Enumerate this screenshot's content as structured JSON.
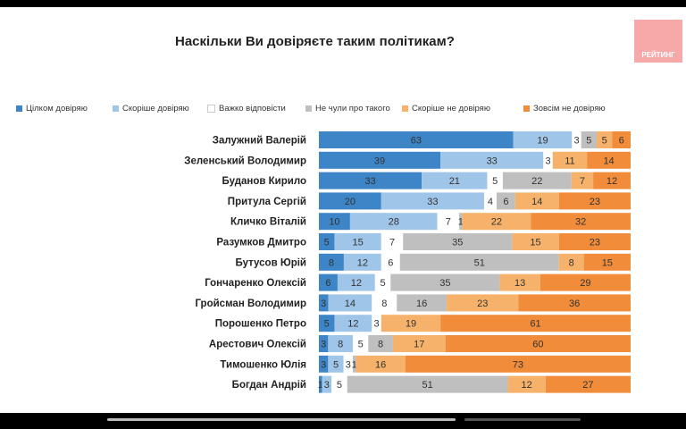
{
  "header": {
    "title": "Наскільки Ви довіряєте таким політикам?",
    "logo_text": "РЕЙТИНГ"
  },
  "colors": {
    "logo": "#f7a9a9"
  },
  "chart_data": {
    "type": "bar",
    "orientation": "horizontal",
    "stacked": true,
    "normalized": true,
    "title": "Наскільки Ви довіряєте таким політикам?",
    "legend_position": "top",
    "grid": false,
    "categories": [
      "Залужний Валерій",
      "Зеленський Володимир",
      "Буданов Кирило",
      "Притула Сергій",
      "Кличко Віталій",
      "Разумков Дмитро",
      "Бутусов Юрій",
      "Гончаренко Олексій",
      "Гройсман Володимир",
      "Порошенко Петро",
      "Арестович Олексій",
      "Тимошенко Юлія",
      "Богдан Андрій"
    ],
    "series": [
      {
        "name": "Цілком довіряю",
        "color": "#3d85c6",
        "values": [
          63,
          39,
          33,
          20,
          10,
          5,
          8,
          6,
          3,
          5,
          3,
          3,
          1
        ]
      },
      {
        "name": "Скоріше довіряю",
        "color": "#9fc5e8",
        "values": [
          19,
          33,
          21,
          33,
          28,
          15,
          12,
          12,
          14,
          12,
          8,
          5,
          3
        ]
      },
      {
        "name": "Важко відповісти",
        "color": "#ffffff",
        "values": [
          3,
          3,
          5,
          4,
          7,
          7,
          6,
          5,
          8,
          3,
          5,
          3,
          5
        ]
      },
      {
        "name": "Не чули про такого",
        "color": "#bfbfbf",
        "values": [
          5,
          null,
          22,
          6,
          1,
          35,
          51,
          35,
          16,
          null,
          8,
          1,
          51
        ]
      },
      {
        "name": "Скоріше не довіряю",
        "color": "#f6b26b",
        "values": [
          5,
          11,
          7,
          14,
          22,
          15,
          8,
          13,
          23,
          19,
          17,
          16,
          12
        ]
      },
      {
        "name": "Зовсім не довіряю",
        "color": "#f08c3a",
        "values": [
          6,
          14,
          12,
          23,
          32,
          23,
          15,
          29,
          36,
          61,
          60,
          73,
          27
        ]
      }
    ]
  }
}
